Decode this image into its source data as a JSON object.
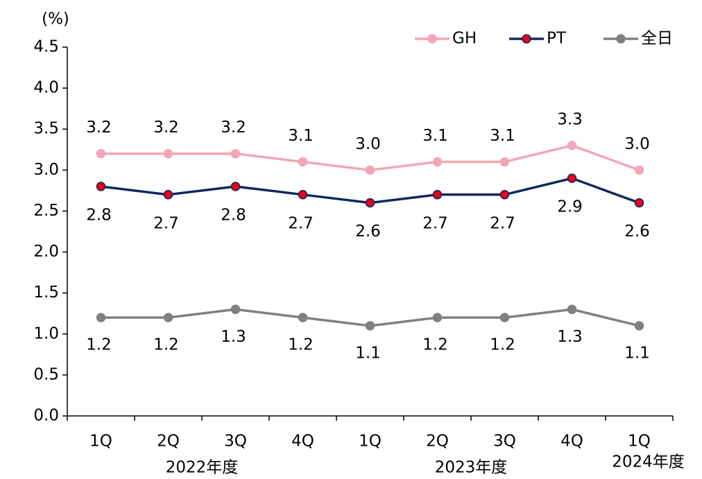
{
  "chart_data": {
    "type": "line",
    "y_label": "(%)",
    "categories": [
      "1Q",
      "2Q",
      "3Q",
      "4Q",
      "1Q",
      "2Q",
      "3Q",
      "4Q",
      "1Q"
    ],
    "year_labels": [
      "2022年度",
      "2023年度",
      "2024年度"
    ],
    "series": [
      {
        "name": "GH",
        "color": "#f2a7b7",
        "marker_color": "#f2a7b7",
        "values": [
          3.2,
          3.2,
          3.2,
          3.1,
          3.0,
          3.1,
          3.1,
          3.3,
          3.0
        ],
        "value_labels": [
          "3.2",
          "3.2",
          "3.2",
          "3.1",
          "3.0",
          "3.1",
          "3.1",
          "3.3",
          "3.0"
        ]
      },
      {
        "name": "PT",
        "color": "#0e2a5c",
        "marker_color": "#e8001c",
        "values": [
          2.8,
          2.7,
          2.8,
          2.7,
          2.6,
          2.7,
          2.7,
          2.9,
          2.6
        ],
        "value_labels": [
          "2.8",
          "2.7",
          "2.8",
          "2.7",
          "2.6",
          "2.7",
          "2.7",
          "2.9",
          "2.6"
        ]
      },
      {
        "name": "全日",
        "color": "#808080",
        "marker_color": "#808080",
        "values": [
          1.2,
          1.2,
          1.3,
          1.2,
          1.1,
          1.2,
          1.2,
          1.3,
          1.1
        ],
        "value_labels": [
          "1.2",
          "1.2",
          "1.3",
          "1.2",
          "1.1",
          "1.2",
          "1.2",
          "1.3",
          "1.1"
        ]
      }
    ],
    "ylim": [
      0,
      4.5
    ],
    "yticks": [
      {
        "value": 0,
        "label": "0.0"
      },
      {
        "value": 0.5,
        "label": "0.5"
      },
      {
        "value": 1,
        "label": "1.0"
      },
      {
        "value": 1.5,
        "label": "1.5"
      },
      {
        "value": 2,
        "label": "2.0"
      },
      {
        "value": 2.5,
        "label": "2.5"
      },
      {
        "value": 3,
        "label": "3.0"
      },
      {
        "value": 3.5,
        "label": "3.5"
      },
      {
        "value": 4,
        "label": "4.0"
      },
      {
        "value": 4.5,
        "label": "4.5"
      }
    ],
    "grid": false,
    "legend": "top-right"
  }
}
